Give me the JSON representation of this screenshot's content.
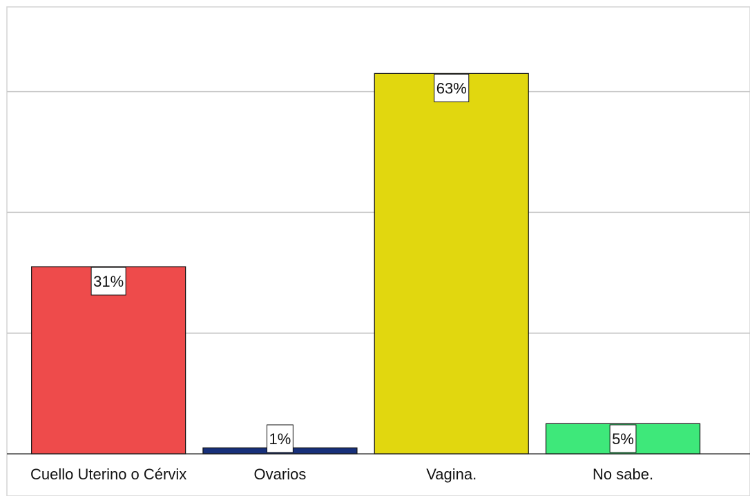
{
  "chart_data": {
    "type": "bar",
    "title": "",
    "xlabel": "",
    "ylabel": "",
    "categories": [
      "Cuello Uterino o Cérvix",
      "Ovarios",
      "Vagina.",
      "No sabe."
    ],
    "values": [
      31,
      1,
      63,
      5
    ],
    "value_labels": [
      "31%",
      "1%",
      "63%",
      "5%"
    ],
    "unit": "%",
    "ylim": [
      0,
      70
    ],
    "yticks": [
      0,
      20,
      40,
      60
    ],
    "show_ytick_labels": false,
    "grid": "horizontal",
    "legend": "none"
  },
  "colors": {
    "bars": [
      "#ee4b4b",
      "#17307a",
      "#e1d70f",
      "#3ee87a"
    ],
    "grid": "#c8c8c8",
    "baseline": "#222222"
  }
}
